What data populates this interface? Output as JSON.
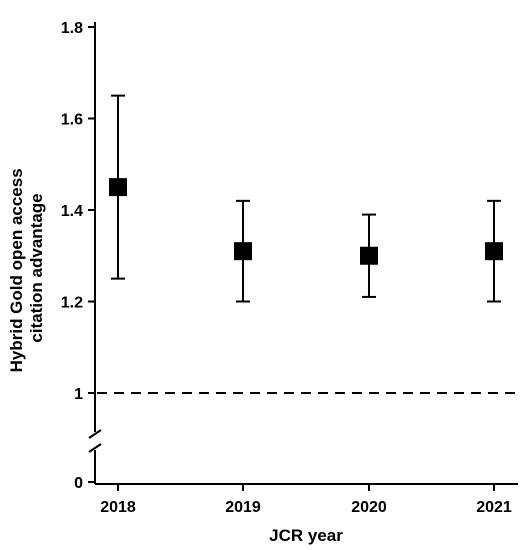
{
  "chart_data": {
    "type": "scatter",
    "subtype": "point-with-error-bars",
    "title": "",
    "xlabel": "JCR year",
    "ylabel_lines": [
      "Hybrid Gold open access",
      "citation advantage"
    ],
    "categories": [
      "2018",
      "2019",
      "2020",
      "2021"
    ],
    "series": [
      {
        "values": [
          1.45,
          1.31,
          1.3,
          1.31
        ],
        "lower": [
          1.25,
          1.2,
          1.21,
          1.2
        ],
        "upper": [
          1.65,
          1.42,
          1.39,
          1.42
        ]
      }
    ],
    "y_ticks": [
      0,
      1,
      1.2,
      1.4,
      1.6,
      1.8
    ],
    "y_tick_labels": [
      "0",
      "1",
      "1.2",
      "1.4",
      "1.6",
      "1.8"
    ],
    "y_axis_break": true,
    "reference_line": {
      "y": 1,
      "style": "dashed"
    },
    "ylim_upper_segment": [
      1,
      1.8
    ],
    "grid": false,
    "marker": "square",
    "colors": {
      "marker": "#000000",
      "axis": "#000000"
    }
  }
}
